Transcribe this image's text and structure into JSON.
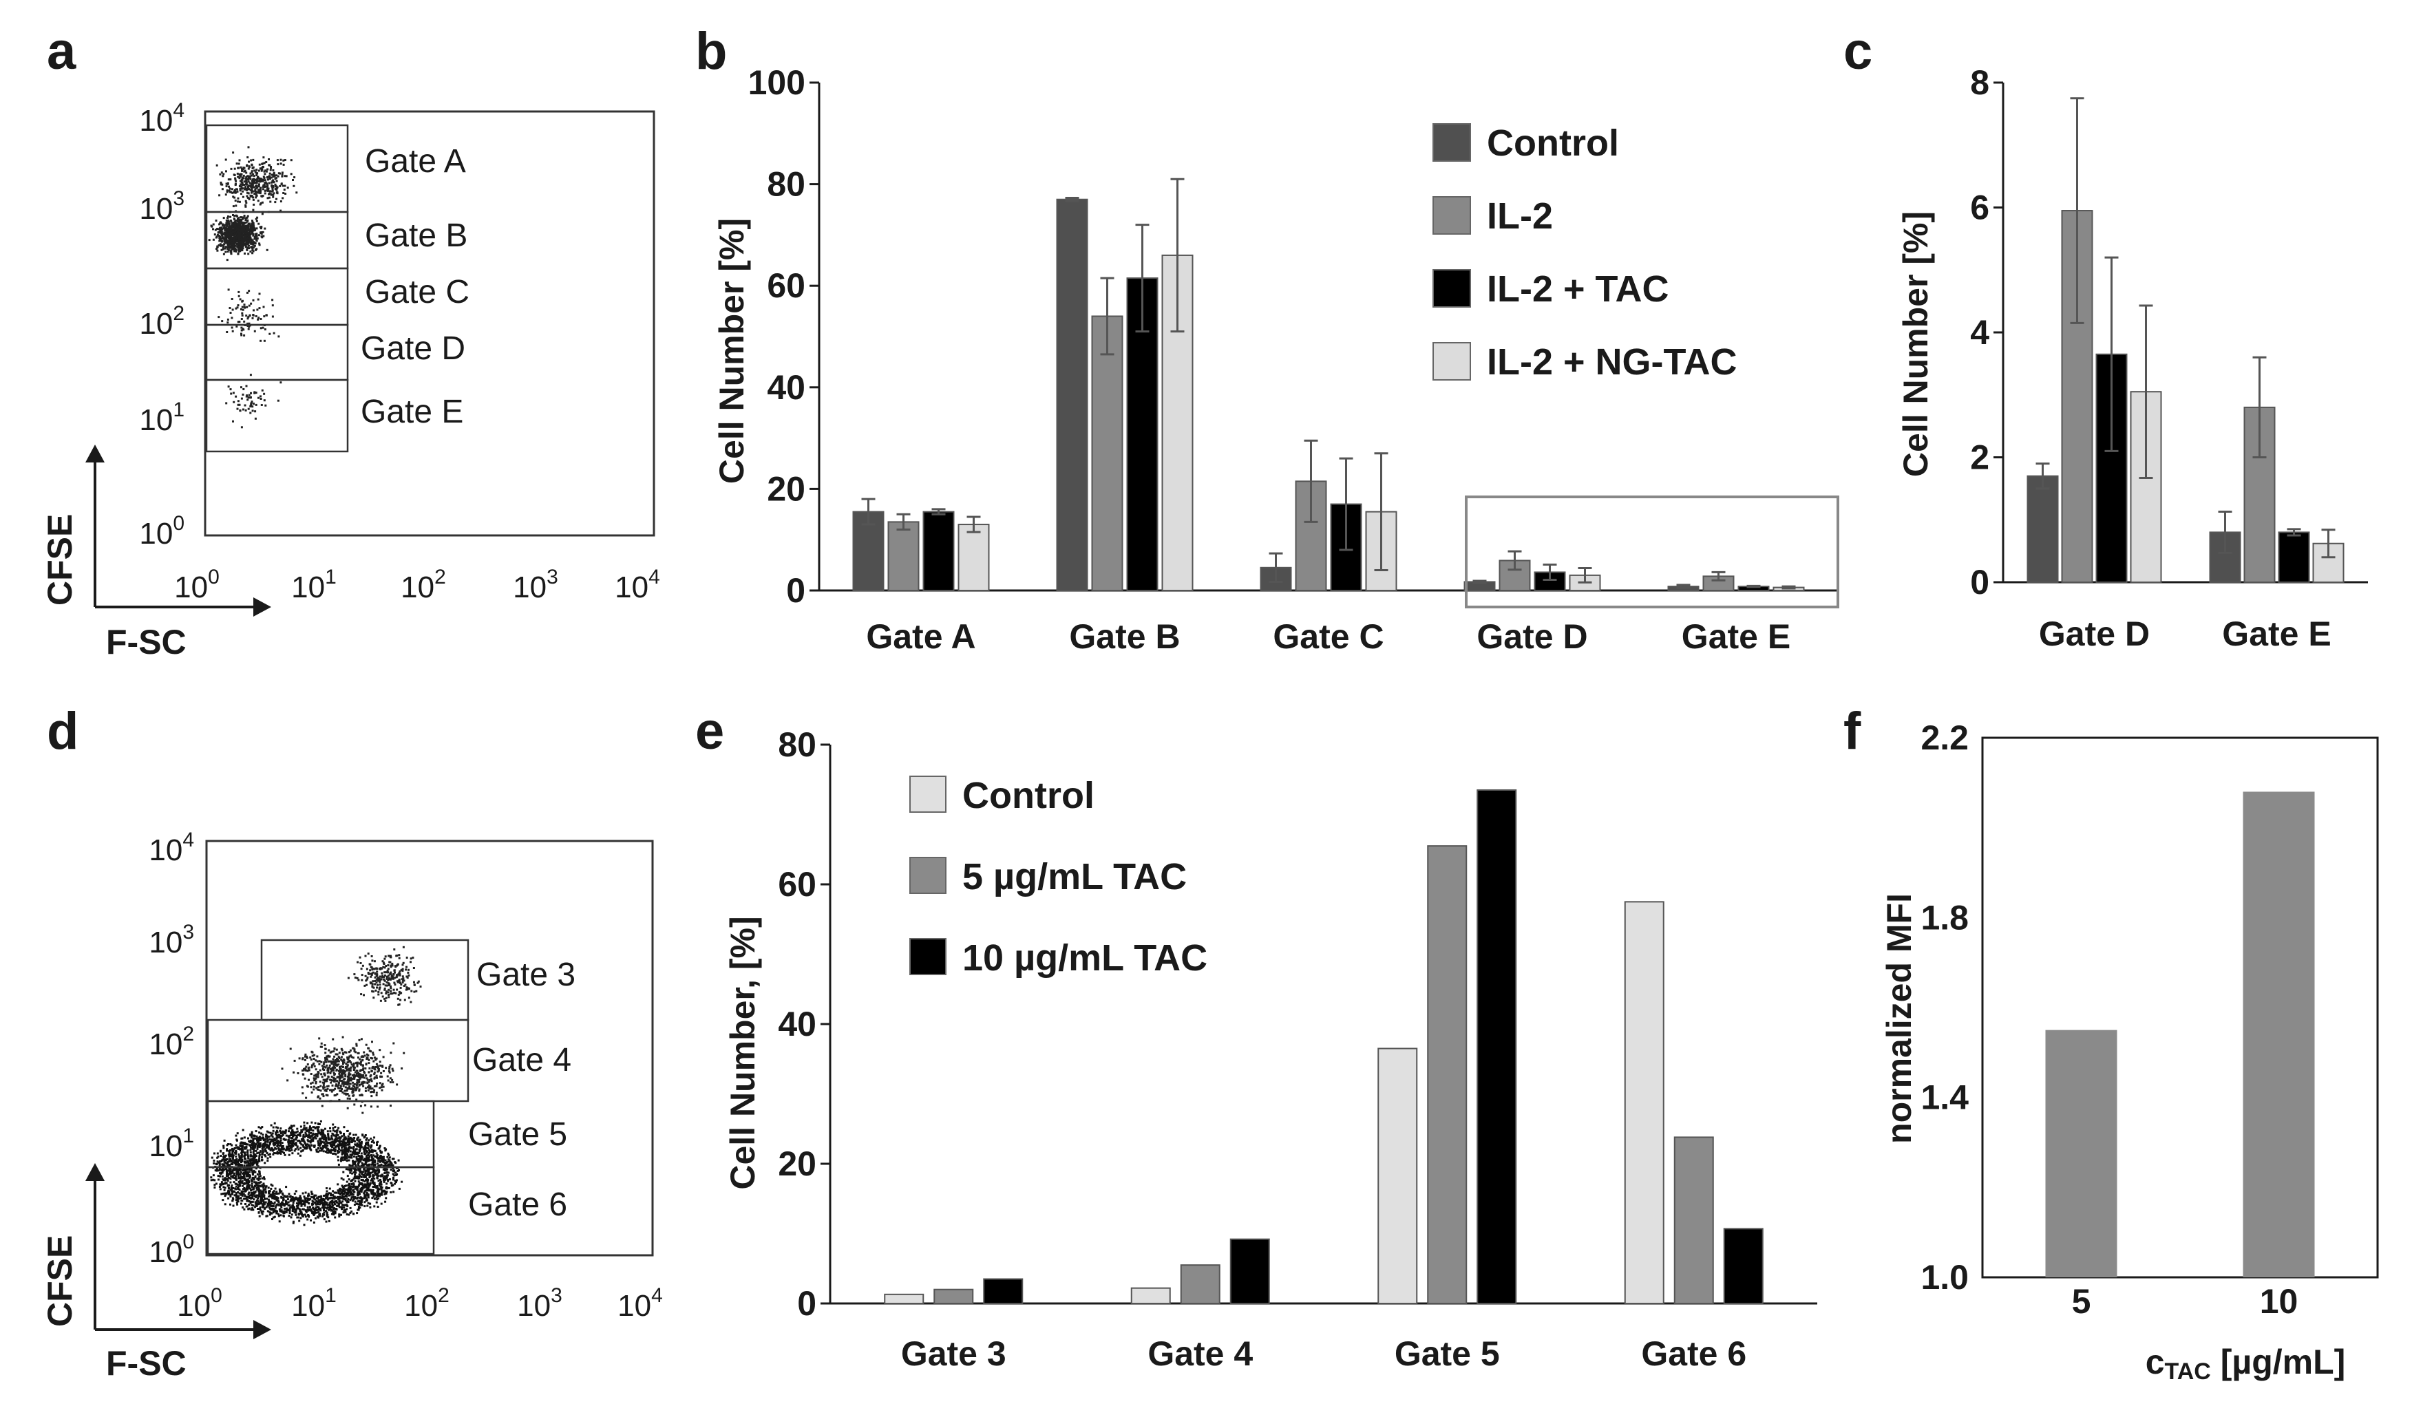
{
  "panels": {
    "a": {
      "letter": "a",
      "xlabel": "F-SC",
      "ylabel": "CFSE",
      "ticks": [
        {
          "base": "10",
          "exp": "0"
        },
        {
          "base": "10",
          "exp": "1"
        },
        {
          "base": "10",
          "exp": "2"
        },
        {
          "base": "10",
          "exp": "3"
        },
        {
          "base": "10",
          "exp": "4"
        }
      ],
      "gates": [
        "Gate A",
        "Gate B",
        "Gate C",
        "Gate D",
        "Gate E"
      ]
    },
    "d": {
      "letter": "d",
      "xlabel": "F-SC",
      "ylabel": "CFSE",
      "ticks": [
        {
          "base": "10",
          "exp": "0"
        },
        {
          "base": "10",
          "exp": "1"
        },
        {
          "base": "10",
          "exp": "2"
        },
        {
          "base": "10",
          "exp": "3"
        },
        {
          "base": "10",
          "exp": "4"
        }
      ],
      "gates": [
        "Gate 3",
        "Gate 4",
        "Gate 5",
        "Gate 6"
      ]
    }
  },
  "colors": {
    "control_dark": "#505050",
    "il2_mid": "#888888",
    "tac_black": "#000000",
    "ngtac_light": "#dcdcdc",
    "light": "#e0e0e0",
    "mid": "#8a8a8a",
    "black": "#000000"
  },
  "chart_data": [
    {
      "panel": "b",
      "type": "bar",
      "ylabel": "Cell Number [%]",
      "ylim": [
        0,
        100
      ],
      "yticks": [
        0,
        20,
        40,
        60,
        80,
        100
      ],
      "categories": [
        "Gate A",
        "Gate B",
        "Gate C",
        "Gate D",
        "Gate E"
      ],
      "legend": "top-right",
      "series": [
        {
          "name": "Control",
          "values": [
            15.5,
            77,
            4.5,
            1.7,
            0.8
          ],
          "errors": [
            2.5,
            0.3,
            2.8,
            0.2,
            0.3
          ]
        },
        {
          "name": "IL-2",
          "values": [
            13.5,
            54,
            21.5,
            5.9,
            2.8
          ],
          "errors": [
            1.5,
            7.5,
            8,
            1.8,
            0.8
          ]
        },
        {
          "name": "IL-2 + TAC",
          "values": [
            15.5,
            61.5,
            17,
            3.6,
            0.8
          ],
          "errors": [
            0.5,
            10.5,
            9,
            1.5,
            0.1
          ]
        },
        {
          "name": "IL-2 + NG-TAC",
          "values": [
            13,
            66,
            15.5,
            3.0,
            0.6
          ],
          "errors": [
            1.5,
            15,
            11.5,
            1.4,
            0.2
          ]
        }
      ],
      "highlight_box": [
        "Gate D",
        "Gate E"
      ]
    },
    {
      "panel": "c",
      "type": "bar",
      "ylabel": "Cell Number [%]",
      "ylim": [
        0,
        8
      ],
      "yticks": [
        0,
        2,
        4,
        6,
        8
      ],
      "categories": [
        "Gate D",
        "Gate E"
      ],
      "series": [
        {
          "name": "Control",
          "values": [
            1.7,
            0.8
          ],
          "errors": [
            0.2,
            0.33
          ]
        },
        {
          "name": "IL-2",
          "values": [
            5.95,
            2.8
          ],
          "errors": [
            1.8,
            0.8
          ]
        },
        {
          "name": "IL-2 + TAC",
          "values": [
            3.65,
            0.8
          ],
          "errors": [
            1.55,
            0.05
          ]
        },
        {
          "name": "IL-2 + NG-TAC",
          "values": [
            3.05,
            0.62
          ],
          "errors": [
            1.38,
            0.22
          ]
        }
      ]
    },
    {
      "panel": "e",
      "type": "bar",
      "ylabel": "Cell Number, [%]",
      "ylim": [
        0,
        80
      ],
      "yticks": [
        0,
        20,
        40,
        60,
        80
      ],
      "categories": [
        "Gate 3",
        "Gate 4",
        "Gate 5",
        "Gate 6"
      ],
      "legend": "top-left",
      "series": [
        {
          "name": "Control",
          "values": [
            1.3,
            2.2,
            36.5,
            57.5
          ]
        },
        {
          "name": "5 µg/mL TAC",
          "values": [
            2,
            5.5,
            65.5,
            23.8
          ]
        },
        {
          "name": "10 µg/mL TAC",
          "values": [
            3.5,
            9.2,
            73.5,
            10.7
          ]
        }
      ]
    },
    {
      "panel": "f",
      "type": "bar",
      "ylabel": "normalized MFI",
      "xlabel_main": "c",
      "xlabel_sub": "TAC",
      "xlabel_unit": " [µg/mL]",
      "ylim": [
        1.0,
        2.2
      ],
      "yticks": [
        "1.0",
        "1.4",
        "1.8",
        "2.2"
      ],
      "categories": [
        "5",
        "10"
      ],
      "values": [
        1.55,
        2.08
      ]
    }
  ]
}
